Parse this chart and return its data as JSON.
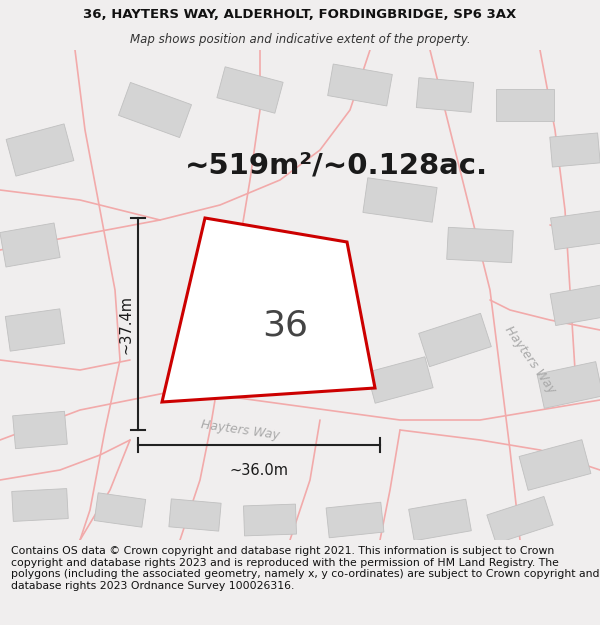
{
  "title_line1": "36, HAYTERS WAY, ALDERHOLT, FORDINGBRIDGE, SP6 3AX",
  "title_line2": "Map shows position and indicative extent of the property.",
  "area_text": "~519m²/~0.128ac.",
  "width_label": "~36.0m",
  "height_label": "~37.4m",
  "number_label": "36",
  "footer_text": "Contains OS data © Crown copyright and database right 2021. This information is subject to Crown copyright and database rights 2023 and is reproduced with the permission of HM Land Registry. The polygons (including the associated geometry, namely x, y co-ordinates) are subject to Crown copyright and database rights 2023 Ordnance Survey 100026316.",
  "page_bg": "#f0eeee",
  "map_bg": "#f7f5f5",
  "road_color": "#f2aaaa",
  "building_fill": "#d4d4d4",
  "building_edge": "#c0c0c0",
  "plot_edge": "#cc0000",
  "dim_color": "#222222",
  "road_label_color": "#aaaaaa",
  "title_fontsize": 9.5,
  "subtitle_fontsize": 8.5,
  "area_fontsize": 21,
  "dim_fontsize": 10.5,
  "number_fontsize": 26,
  "footer_fontsize": 7.8,
  "road_lw": 1.2,
  "plot_lw": 2.2
}
